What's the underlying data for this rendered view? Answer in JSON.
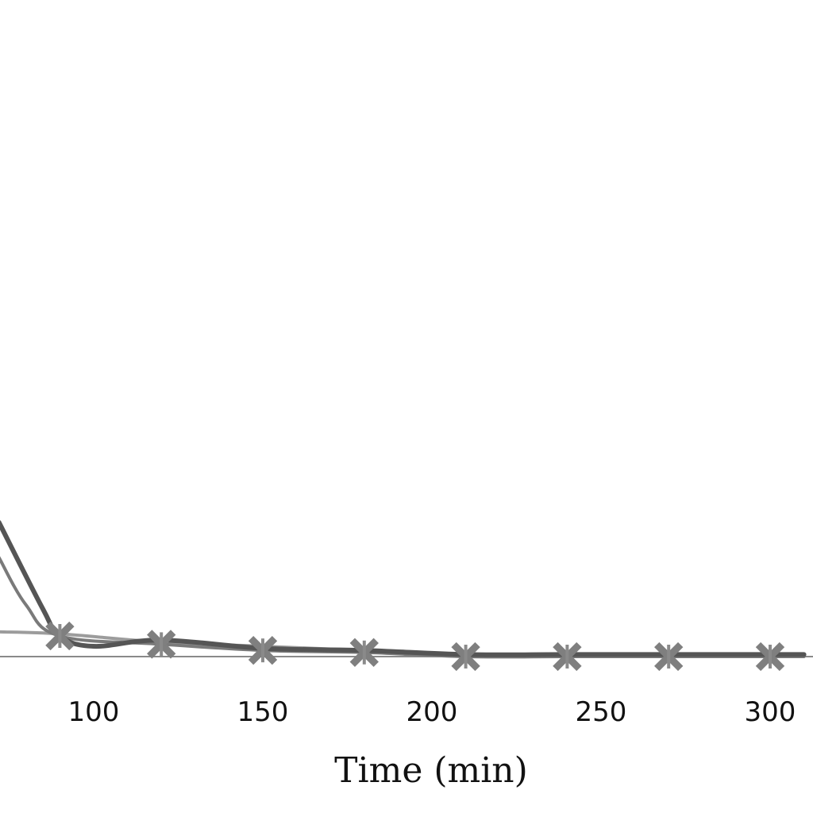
{
  "chart_data": {
    "type": "line",
    "xlabel": "Time (min)",
    "ylabel": "",
    "xticks": [
      100,
      150,
      200,
      250,
      300
    ],
    "xlim": [
      72,
      310
    ],
    "ylim": [
      0,
      12
    ],
    "grid": false,
    "series": [
      {
        "color": "#555555",
        "width": 6,
        "marker": "none",
        "x": [
          72,
          85,
          90,
          100,
          120,
          150,
          180,
          210,
          240,
          270,
          300,
          310
        ],
        "y": [
          6.5,
          2.3,
          1.0,
          0.5,
          0.8,
          0.4,
          0.3,
          0.1,
          0.1,
          0.1,
          0.1,
          0.1
        ]
      },
      {
        "color": "#7a7a7a",
        "width": 4,
        "marker": "x",
        "x": [
          72,
          80,
          90,
          120,
          150,
          180,
          210,
          240,
          270,
          300,
          310
        ],
        "y": [
          4.8,
          2.5,
          1.0,
          0.6,
          0.3,
          0.2,
          0.0,
          0.0,
          0.0,
          0.0,
          0.0
        ],
        "marker_x": [
          90,
          120,
          150,
          180,
          210,
          240,
          270,
          300
        ],
        "marker_y": [
          1.0,
          0.6,
          0.3,
          0.2,
          0.0,
          0.0,
          0.0,
          0.0
        ]
      },
      {
        "color": "#9c9c9c",
        "width": 4,
        "marker": "none",
        "x": [
          72,
          90,
          120,
          150,
          180,
          210,
          240,
          270,
          300,
          310
        ],
        "y": [
          1.2,
          1.1,
          0.7,
          0.5,
          0.3,
          0.1,
          0.1,
          0.1,
          0.1,
          0.1
        ]
      }
    ]
  }
}
